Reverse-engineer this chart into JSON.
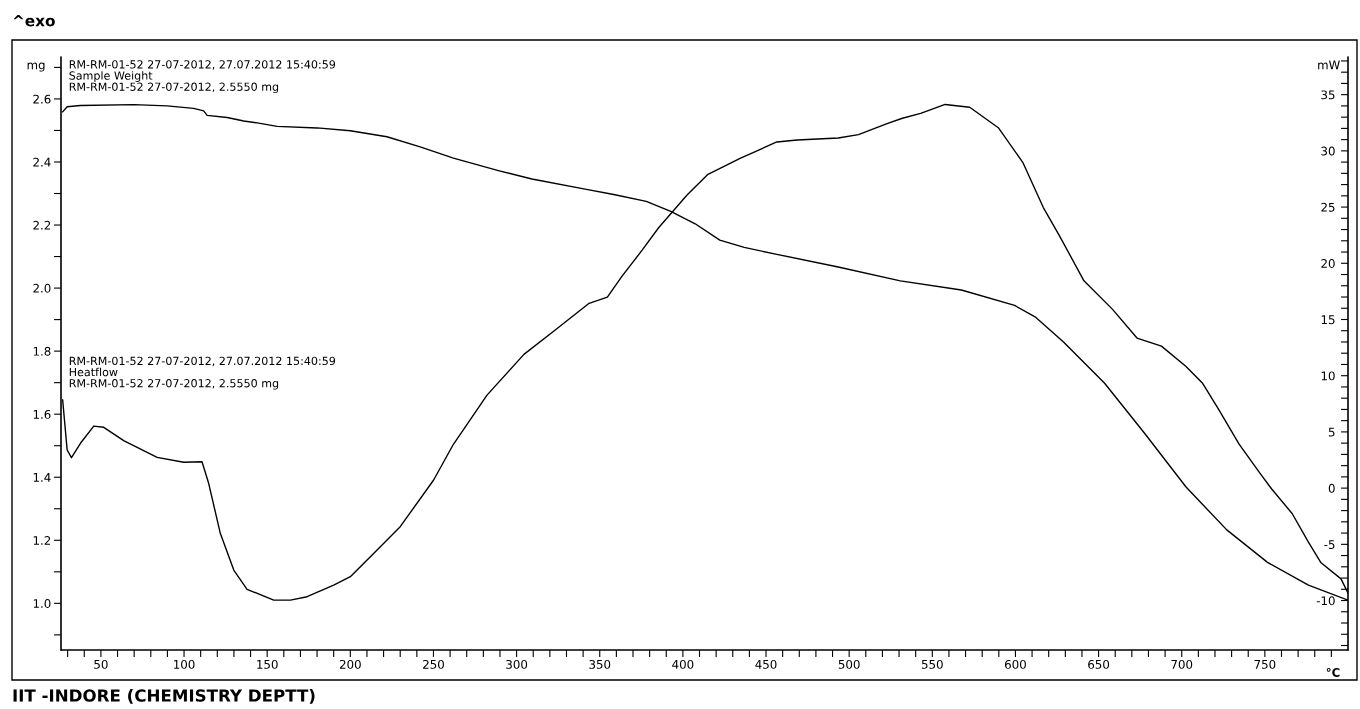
{
  "chart_data": {
    "type": "line",
    "xlabel": "°C",
    "ylabel": "mg",
    "y2label": "mW",
    "annotations": [
      "RM-RM-01-52 27-07-2012, 27.07.2012 15:40:59",
      "RM-RM-01-52 27-07-2012, 2.5550 mg",
      "RM-RM-01-52 27-07-2012, 27.07.2012 15:40:59",
      "RM-RM-01-52 27-07-2012, 2.5550 mg",
      "^exo",
      "IIT -INDORE (CHEMISTRY DEPTT)"
    ],
    "xlim": [
      26,
      800
    ],
    "ylim": [
      0.852,
      2.733
    ],
    "y2lim": [
      -14.4,
      38.35
    ],
    "xticks": [
      {
        "value": 30,
        "label": null
      },
      {
        "value": 40,
        "label": null
      },
      50,
      {
        "value": 60,
        "label": null
      },
      {
        "value": 70,
        "label": null
      },
      {
        "value": 80,
        "label": null
      },
      {
        "value": 90,
        "label": null
      },
      100,
      {
        "value": 110,
        "label": null
      },
      {
        "value": 120,
        "label": null
      },
      {
        "value": 130,
        "label": null
      },
      {
        "value": 140,
        "label": null
      },
      150,
      {
        "value": 160,
        "label": null
      },
      {
        "value": 170,
        "label": null
      },
      {
        "value": 180,
        "label": null
      },
      {
        "value": 190,
        "label": null
      },
      200,
      {
        "value": 210,
        "label": null
      },
      {
        "value": 220,
        "label": null
      },
      {
        "value": 230,
        "label": null
      },
      {
        "value": 240,
        "label": null
      },
      250,
      {
        "value": 260,
        "label": null
      },
      {
        "value": 270,
        "label": null
      },
      {
        "value": 280,
        "label": null
      },
      {
        "value": 290,
        "label": null
      },
      300,
      {
        "value": 310,
        "label": null
      },
      {
        "value": 320,
        "label": null
      },
      {
        "value": 330,
        "label": null
      },
      {
        "value": 340,
        "label": null
      },
      350,
      {
        "value": 360,
        "label": null
      },
      {
        "value": 370,
        "label": null
      },
      {
        "value": 380,
        "label": null
      },
      {
        "value": 390,
        "label": null
      },
      400,
      {
        "value": 410,
        "label": null
      },
      {
        "value": 420,
        "label": null
      },
      {
        "value": 430,
        "label": null
      },
      {
        "value": 440,
        "label": null
      },
      450,
      {
        "value": 460,
        "label": null
      },
      {
        "value": 470,
        "label": null
      },
      {
        "value": 480,
        "label": null
      },
      {
        "value": 490,
        "label": null
      },
      500,
      {
        "value": 510,
        "label": null
      },
      {
        "value": 520,
        "label": null
      },
      {
        "value": 530,
        "label": null
      },
      {
        "value": 540,
        "label": null
      },
      550,
      {
        "value": 560,
        "label": null
      },
      {
        "value": 570,
        "label": null
      },
      {
        "value": 580,
        "label": null
      },
      {
        "value": 590,
        "label": null
      },
      600,
      {
        "value": 610,
        "label": null
      },
      {
        "value": 620,
        "label": null
      },
      {
        "value": 630,
        "label": null
      },
      {
        "value": 640,
        "label": null
      },
      650,
      {
        "value": 660,
        "label": null
      },
      {
        "value": 670,
        "label": null
      },
      {
        "value": 680,
        "label": null
      },
      {
        "value": 690,
        "label": null
      },
      700,
      {
        "value": 710,
        "label": null
      },
      {
        "value": 720,
        "label": null
      },
      {
        "value": 730,
        "label": null
      },
      {
        "value": 740,
        "label": null
      },
      750,
      {
        "value": 760,
        "label": null
      },
      {
        "value": 770,
        "label": null
      },
      {
        "value": 780,
        "label": null
      },
      {
        "value": 790,
        "label": null
      }
    ],
    "yticks": [
      {
        "value": 0.9,
        "label": null
      },
      {
        "value": 1.0,
        "label": "1.0"
      },
      {
        "value": 1.1,
        "label": null
      },
      {
        "value": 1.2,
        "label": "1.2"
      },
      {
        "value": 1.3,
        "label": null
      },
      {
        "value": 1.4,
        "label": "1.4"
      },
      {
        "value": 1.5,
        "label": null
      },
      {
        "value": 1.6,
        "label": "1.6"
      },
      {
        "value": 1.7,
        "label": null
      },
      {
        "value": 1.8,
        "label": "1.8"
      },
      {
        "value": 1.9,
        "label": null
      },
      {
        "value": 2.0,
        "label": "2.0"
      },
      {
        "value": 2.1,
        "label": null
      },
      {
        "value": 2.2,
        "label": "2.2"
      },
      {
        "value": 2.3,
        "label": null
      },
      {
        "value": 2.4,
        "label": "2.4"
      },
      {
        "value": 2.5,
        "label": null
      },
      {
        "value": 2.6,
        "label": "2.6"
      },
      {
        "value": 2.7,
        "label": null
      }
    ],
    "y2ticks": [
      {
        "value": -14,
        "label": null
      },
      {
        "value": -13,
        "label": null
      },
      {
        "value": -12,
        "label": null
      },
      {
        "value": -11,
        "label": null
      },
      -10,
      {
        "value": -9,
        "label": null
      },
      {
        "value": -8,
        "label": null
      },
      {
        "value": -7,
        "label": null
      },
      {
        "value": -6,
        "label": null
      },
      -5,
      {
        "value": -4,
        "label": null
      },
      {
        "value": -3,
        "label": null
      },
      {
        "value": -2,
        "label": null
      },
      {
        "value": -1,
        "label": null
      },
      0,
      {
        "value": 1,
        "label": null
      },
      {
        "value": 2,
        "label": null
      },
      {
        "value": 3,
        "label": null
      },
      {
        "value": 4,
        "label": null
      },
      5,
      {
        "value": 6,
        "label": null
      },
      {
        "value": 7,
        "label": null
      },
      {
        "value": 8,
        "label": null
      },
      {
        "value": 9,
        "label": null
      },
      10,
      {
        "value": 11,
        "label": null
      },
      {
        "value": 12,
        "label": null
      },
      {
        "value": 13,
        "label": null
      },
      {
        "value": 14,
        "label": null
      },
      15,
      {
        "value": 16,
        "label": null
      },
      {
        "value": 17,
        "label": null
      },
      {
        "value": 18,
        "label": null
      },
      {
        "value": 19,
        "label": null
      },
      20,
      {
        "value": 21,
        "label": null
      },
      {
        "value": 22,
        "label": null
      },
      {
        "value": 23,
        "label": null
      },
      {
        "value": 24,
        "label": null
      },
      25,
      {
        "value": 26,
        "label": null
      },
      {
        "value": 27,
        "label": null
      },
      {
        "value": 28,
        "label": null
      },
      {
        "value": 29,
        "label": null
      },
      30,
      {
        "value": 31,
        "label": null
      },
      {
        "value": 32,
        "label": null
      },
      {
        "value": 33,
        "label": null
      },
      {
        "value": 34,
        "label": null
      },
      35,
      {
        "value": 36,
        "label": null
      },
      {
        "value": 37,
        "label": null
      },
      {
        "value": 38,
        "label": null
      }
    ],
    "grid": false,
    "legend": false,
    "marker": "none",
    "line_style": "solid",
    "series": [
      {
        "name": "Sample Weight",
        "color": "#000000",
        "x": [
          27,
          29.7,
          37.7,
          69.7,
          89.8,
          105.8,
          111.8,
          113.9,
          125.9,
          135.9,
          144,
          156,
          180,
          200,
          222,
          242,
          262,
          289.6,
          309.2,
          341.2,
          358.4,
          378,
          392.7,
          407.4,
          422.2,
          436.9,
          456.5,
          493.4,
          530.8,
          567.5,
          599.5,
          611.8,
          628.9,
          653.5,
          678,
          702.6,
          727.1,
          751.6,
          776.2,
          799.6
        ],
        "values": [
          2.559,
          2.575,
          2.579,
          2.582,
          2.578,
          2.57,
          2.562,
          2.548,
          2.541,
          2.53,
          2.524,
          2.513,
          2.508,
          2.499,
          2.48,
          2.448,
          2.412,
          2.372,
          2.346,
          2.314,
          2.297,
          2.275,
          2.243,
          2.204,
          2.152,
          2.129,
          2.107,
          2.067,
          2.023,
          1.994,
          1.945,
          1.909,
          1.829,
          1.699,
          1.537,
          1.369,
          1.233,
          1.13,
          1.058,
          1.011
        ]
      },
      {
        "name": "Heatflow",
        "color": "#000000",
        "axis": "y2",
        "x": [
          27,
          29.7,
          32.3,
          37.7,
          45.7,
          51.7,
          63.7,
          83.8,
          99.8,
          110.8,
          114.8,
          121.8,
          129.9,
          137.9,
          153.9,
          164,
          174,
          190,
          200,
          216.1,
          230,
          250.1,
          262,
          282.2,
          304.4,
          324,
          343.6,
          354.6,
          363.2,
          375.5,
          385.4,
          402.5,
          414.8,
          434.4,
          456.5,
          468.8,
          493.4,
          505.6,
          522.8,
          532,
          543,
          557.7,
          572.5,
          589.7,
          604.4,
          616.7,
          626.5,
          641.2,
          658.4,
          673.1,
          687.8,
          702.6,
          712.4,
          722.2,
          734.5,
          746.8,
          754.1,
          766.4,
          776.2,
          783.6,
          795.8,
          800
        ],
        "values": [
          7.84,
          3.39,
          2.71,
          3.99,
          5.52,
          5.41,
          4.22,
          2.74,
          2.3,
          2.35,
          0.43,
          -4.02,
          -7.29,
          -9.0,
          -9.96,
          -9.96,
          -9.66,
          -8.62,
          -7.88,
          -5.5,
          -3.43,
          0.72,
          3.9,
          8.27,
          11.9,
          14.15,
          16.44,
          16.99,
          18.81,
          21.17,
          23.16,
          26.07,
          27.88,
          29.33,
          30.79,
          30.97,
          31.15,
          31.44,
          32.42,
          32.9,
          33.33,
          34.13,
          33.88,
          32.06,
          28.98,
          24.98,
          22.44,
          18.44,
          15.9,
          13.35,
          12.63,
          10.82,
          9.36,
          7.0,
          3.91,
          1.37,
          -0.08,
          -2.26,
          -4.8,
          -6.61,
          -8.07,
          -9.33
        ]
      }
    ]
  }
}
